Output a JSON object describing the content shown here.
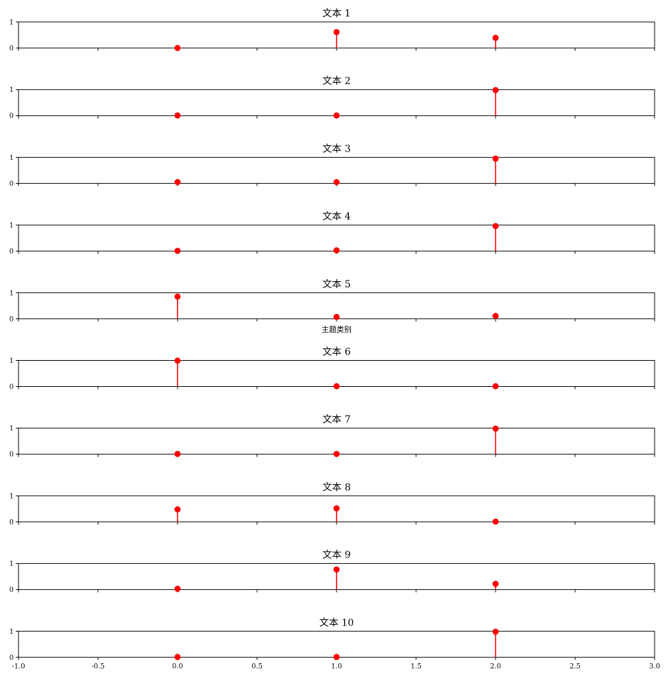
{
  "chart_data": {
    "type": "stem",
    "xlim": [
      -1.0,
      3.0
    ],
    "ylim": [
      0,
      1
    ],
    "x_ticks": [
      -1.0,
      -0.5,
      0.0,
      0.5,
      1.0,
      1.5,
      2.0,
      2.5,
      3.0
    ],
    "x_tick_labels": [
      "-1.0",
      "-0.5",
      "0.0",
      "0.5",
      "1.0",
      "1.5",
      "2.0",
      "2.5",
      "3.0"
    ],
    "y_ticks": [
      0,
      1
    ],
    "y_tick_labels": [
      "0",
      "1"
    ],
    "xlabel": "主题类别",
    "marker_color": "#ff0000",
    "grid": false,
    "x": [
      0,
      1,
      2
    ],
    "panels": [
      {
        "title": "文本 1",
        "values": [
          0.0,
          0.61,
          0.39
        ]
      },
      {
        "title": "文本 2",
        "values": [
          0.01,
          0.01,
          0.98
        ]
      },
      {
        "title": "文本 3",
        "values": [
          0.05,
          0.05,
          0.95
        ]
      },
      {
        "title": "文本 4",
        "values": [
          0.01,
          0.03,
          0.96
        ]
      },
      {
        "title": "文本 5",
        "values": [
          0.85,
          0.07,
          0.11
        ]
      },
      {
        "title": "文本 6",
        "values": [
          0.99,
          0.01,
          0.01
        ]
      },
      {
        "title": "文本 7",
        "values": [
          0.01,
          0.01,
          0.98
        ]
      },
      {
        "title": "文本 8",
        "values": [
          0.48,
          0.52,
          0.01
        ]
      },
      {
        "title": "文本 9",
        "values": [
          0.03,
          0.77,
          0.22
        ]
      },
      {
        "title": "文本 10",
        "values": [
          0.01,
          0.01,
          0.98
        ]
      }
    ]
  }
}
